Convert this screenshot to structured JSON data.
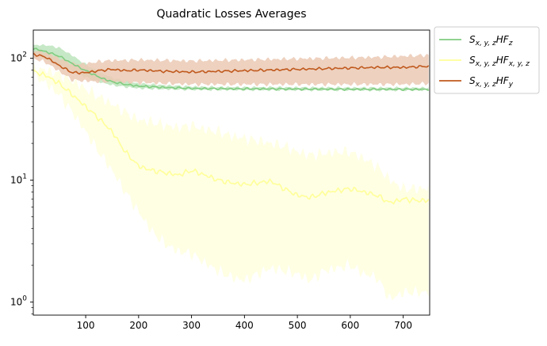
{
  "chart_data": {
    "type": "line",
    "title": "Quadratic Losses Averages",
    "xlabel": "",
    "ylabel": "",
    "yscale": "log",
    "xlim": [
      1,
      750
    ],
    "ylim": [
      0.78,
      170
    ],
    "x_ticks": [
      100,
      200,
      300,
      400,
      500,
      600,
      700
    ],
    "y_ticks": [
      {
        "value": 1,
        "label": "10",
        "exp": "0"
      },
      {
        "value": 10,
        "label": "10",
        "exp": "1"
      },
      {
        "value": 100,
        "label": "10",
        "exp": "2"
      }
    ],
    "grid": false,
    "legend": {
      "position": "outside-right",
      "entries": [
        {
          "base": "S",
          "sub1": "x, y, z",
          "mid": "HF",
          "sub2": "z"
        },
        {
          "base": "S",
          "sub1": "x, y, z",
          "mid": "HF",
          "sub2": "x, y, z"
        },
        {
          "base": "S",
          "sub1": "x, y, z",
          "mid": "HF",
          "sub2": "y"
        }
      ]
    },
    "series": [
      {
        "color": "#80cc80",
        "band_color": "#b3e0b3",
        "x": [
          1,
          25,
          50,
          75,
          100,
          125,
          150,
          175,
          200,
          250,
          300,
          350,
          400,
          450,
          500,
          550,
          600,
          650,
          700,
          750
        ],
        "y": [
          120,
          113,
          104,
          90,
          79,
          70,
          64,
          61,
          59,
          57.5,
          56.5,
          56.2,
          56,
          56,
          55.8,
          55.7,
          55.6,
          55.6,
          55.5,
          55.5
        ],
        "lower": [
          112,
          98,
          88,
          78,
          70,
          64,
          60,
          58,
          56.5,
          55.5,
          55,
          54.8,
          54.7,
          54.6,
          54.5,
          54.5,
          54.4,
          54.4,
          54.4,
          54.4
        ],
        "upper": [
          128,
          128,
          122,
          105,
          89,
          77,
          69,
          64.5,
          62,
          60,
          58.5,
          58,
          57.8,
          57.8,
          57.6,
          57.5,
          57.4,
          57.4,
          57.3,
          57.3
        ]
      },
      {
        "color": "#ffff99",
        "band_color": "#ffffdb",
        "x": [
          1,
          25,
          50,
          75,
          100,
          125,
          150,
          175,
          200,
          225,
          250,
          275,
          300,
          325,
          350,
          375,
          400,
          425,
          450,
          475,
          500,
          525,
          550,
          575,
          600,
          625,
          650,
          675,
          700,
          725,
          750
        ],
        "y": [
          78,
          72,
          62,
          50,
          40,
          32,
          25,
          17,
          13,
          12,
          11.5,
          11,
          12,
          11,
          10,
          9.5,
          9.2,
          9.5,
          9.8,
          8.5,
          7.5,
          7.2,
          7.8,
          8.2,
          8.5,
          8,
          7.5,
          6.5,
          7,
          6.8,
          6.8
        ],
        "lower": [
          74,
          62,
          50,
          36,
          25,
          17,
          12,
          8,
          5.5,
          3.8,
          3,
          2.6,
          2.5,
          2.1,
          1.8,
          1.6,
          1.5,
          1.7,
          1.9,
          1.8,
          1.7,
          1.5,
          1.8,
          1.9,
          2,
          1.7,
          1.6,
          1.05,
          1.2,
          1.2,
          1.2
        ],
        "upper": [
          82,
          80,
          74,
          65,
          56,
          48,
          42,
          36,
          31,
          30,
          28,
          27,
          28,
          26,
          25,
          23,
          22,
          21,
          20,
          19,
          17,
          16,
          16.5,
          17,
          17,
          15,
          13,
          10,
          8.5,
          8.5,
          8.5
        ]
      },
      {
        "color": "#c05a1e",
        "band_color": "#ebc9b4",
        "x": [
          1,
          25,
          50,
          75,
          100,
          125,
          150,
          175,
          200,
          250,
          300,
          350,
          400,
          450,
          500,
          550,
          600,
          650,
          700,
          750
        ],
        "y": [
          108,
          102,
          87,
          76,
          76,
          79,
          81,
          79,
          80,
          78,
          77,
          78,
          79,
          80,
          81,
          82,
          83,
          84,
          84,
          86
        ],
        "lower": [
          100,
          92,
          78,
          66,
          65,
          64,
          64,
          63,
          63,
          62,
          61,
          61,
          61,
          61,
          61,
          61,
          61,
          61,
          61,
          62
        ],
        "upper": [
          116,
          113,
          100,
          90,
          90,
          94,
          96,
          96,
          97,
          96,
          95,
          96,
          97,
          98,
          99,
          100,
          101,
          102,
          104,
          106
        ]
      }
    ]
  }
}
